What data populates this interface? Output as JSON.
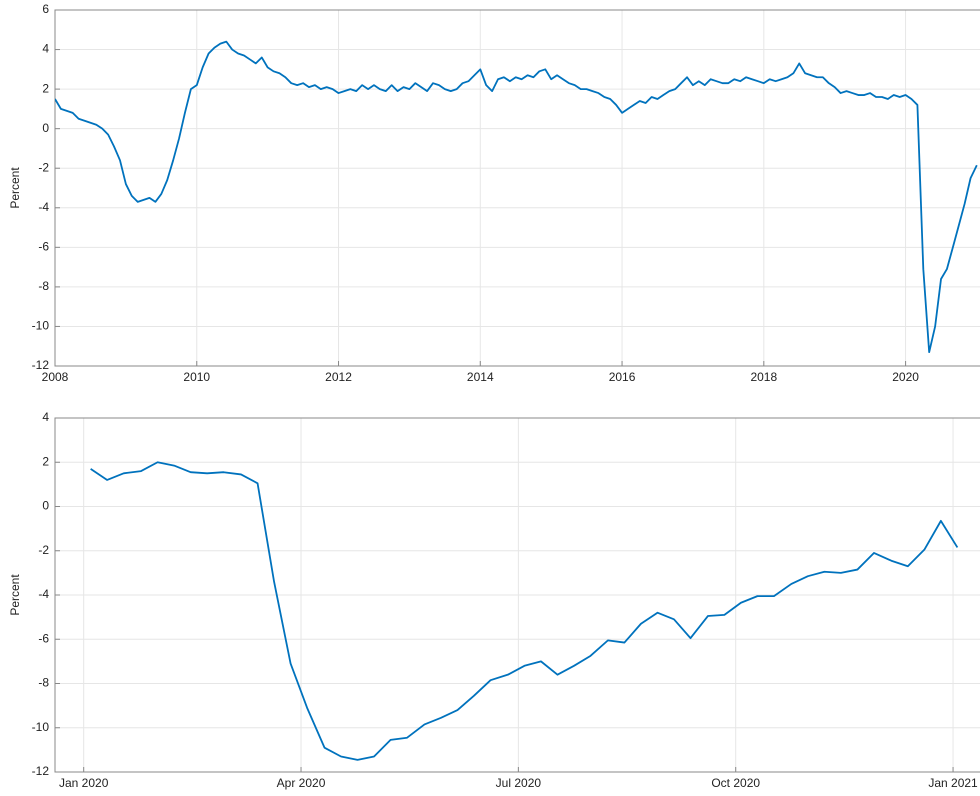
{
  "chart_data": [
    {
      "type": "line",
      "ylabel": "Percent",
      "color": "#0072bd",
      "grid": true,
      "xlim": [
        2008,
        2021.05
      ],
      "ylim": [
        -12,
        6
      ],
      "xticks": [
        2008,
        2010,
        2012,
        2014,
        2016,
        2018,
        2020
      ],
      "yticks": [
        -12,
        -10,
        -8,
        -6,
        -4,
        -2,
        0,
        2,
        4,
        6
      ],
      "x": [
        2008,
        2008.083,
        2008.167,
        2008.25,
        2008.333,
        2008.417,
        2008.5,
        2008.583,
        2008.667,
        2008.75,
        2008.833,
        2008.917,
        2009,
        2009.083,
        2009.167,
        2009.25,
        2009.333,
        2009.417,
        2009.5,
        2009.583,
        2009.667,
        2009.75,
        2009.833,
        2009.917,
        2010,
        2010.083,
        2010.167,
        2010.25,
        2010.333,
        2010.417,
        2010.5,
        2010.583,
        2010.667,
        2010.75,
        2010.833,
        2010.917,
        2011,
        2011.083,
        2011.167,
        2011.25,
        2011.333,
        2011.417,
        2011.5,
        2011.583,
        2011.667,
        2011.75,
        2011.833,
        2011.917,
        2012,
        2012.083,
        2012.167,
        2012.25,
        2012.333,
        2012.417,
        2012.5,
        2012.583,
        2012.667,
        2012.75,
        2012.833,
        2012.917,
        2013,
        2013.083,
        2013.167,
        2013.25,
        2013.333,
        2013.417,
        2013.5,
        2013.583,
        2013.667,
        2013.75,
        2013.833,
        2013.917,
        2014,
        2014.083,
        2014.167,
        2014.25,
        2014.333,
        2014.417,
        2014.5,
        2014.583,
        2014.667,
        2014.75,
        2014.833,
        2014.917,
        2015,
        2015.083,
        2015.167,
        2015.25,
        2015.333,
        2015.417,
        2015.5,
        2015.583,
        2015.667,
        2015.75,
        2015.833,
        2015.917,
        2016,
        2016.083,
        2016.167,
        2016.25,
        2016.333,
        2016.417,
        2016.5,
        2016.583,
        2016.667,
        2016.75,
        2016.833,
        2016.917,
        2017,
        2017.083,
        2017.167,
        2017.25,
        2017.333,
        2017.417,
        2017.5,
        2017.583,
        2017.667,
        2017.75,
        2017.833,
        2017.917,
        2018,
        2018.083,
        2018.167,
        2018.25,
        2018.333,
        2018.417,
        2018.5,
        2018.583,
        2018.667,
        2018.75,
        2018.833,
        2018.917,
        2019,
        2019.083,
        2019.167,
        2019.25,
        2019.333,
        2019.417,
        2019.5,
        2019.583,
        2019.667,
        2019.75,
        2019.833,
        2019.917,
        2020,
        2020.083,
        2020.167,
        2020.25,
        2020.333,
        2020.417,
        2020.5,
        2020.583,
        2020.667,
        2020.75,
        2020.833,
        2020.917,
        2021.005
      ],
      "values": [
        1.5,
        1.0,
        0.9,
        0.8,
        0.5,
        0.4,
        0.3,
        0.2,
        0.0,
        -0.3,
        -0.9,
        -1.6,
        -2.8,
        -3.4,
        -3.7,
        -3.6,
        -3.5,
        -3.7,
        -3.3,
        -2.6,
        -1.6,
        -0.5,
        0.8,
        2.0,
        2.2,
        3.1,
        3.8,
        4.1,
        4.3,
        4.4,
        4.0,
        3.8,
        3.7,
        3.5,
        3.3,
        3.6,
        3.1,
        2.9,
        2.8,
        2.6,
        2.3,
        2.2,
        2.3,
        2.1,
        2.2,
        2.0,
        2.1,
        2.0,
        1.8,
        1.9,
        2.0,
        1.9,
        2.2,
        2.0,
        2.2,
        2.0,
        1.9,
        2.2,
        1.9,
        2.1,
        2.0,
        2.3,
        2.1,
        1.9,
        2.3,
        2.2,
        2.0,
        1.9,
        2.0,
        2.3,
        2.4,
        2.7,
        3.0,
        2.2,
        1.9,
        2.5,
        2.6,
        2.4,
        2.6,
        2.5,
        2.7,
        2.6,
        2.9,
        3.0,
        2.5,
        2.7,
        2.5,
        2.3,
        2.2,
        2.0,
        2.0,
        1.9,
        1.8,
        1.6,
        1.5,
        1.2,
        0.8,
        1.0,
        1.2,
        1.4,
        1.3,
        1.6,
        1.5,
        1.7,
        1.9,
        2.0,
        2.3,
        2.6,
        2.2,
        2.4,
        2.2,
        2.5,
        2.4,
        2.3,
        2.3,
        2.5,
        2.4,
        2.6,
        2.5,
        2.4,
        2.3,
        2.5,
        2.4,
        2.5,
        2.6,
        2.8,
        3.3,
        2.8,
        2.7,
        2.6,
        2.6,
        2.3,
        2.1,
        1.8,
        1.9,
        1.8,
        1.7,
        1.7,
        1.8,
        1.6,
        1.6,
        1.5,
        1.7,
        1.6,
        1.7,
        1.5,
        1.2,
        -7.1,
        -11.3,
        -10.0,
        -7.6,
        -7.1,
        -6.0,
        -4.9,
        -3.8,
        -2.5,
        -1.85
      ]
    },
    {
      "type": "line",
      "ylabel": "Percent",
      "color": "#0072bd",
      "grid": true,
      "xlim": [
        2019.967,
        2021.031
      ],
      "ylim": [
        -12,
        4
      ],
      "xticks": [
        {
          "value": 2020,
          "label": "Jan 2020"
        },
        {
          "value": 2020.25,
          "label": "Apr 2020"
        },
        {
          "value": 2020.5,
          "label": "Jul 2020"
        },
        {
          "value": 2020.75,
          "label": "Oct 2020"
        },
        {
          "value": 2021,
          "label": "Jan 2021"
        }
      ],
      "yticks": [
        -12,
        -10,
        -8,
        -6,
        -4,
        -2,
        0,
        2,
        4
      ],
      "x": [
        2020.008,
        2020.027,
        2020.046,
        2020.066,
        2020.085,
        2020.104,
        2020.123,
        2020.142,
        2020.161,
        2020.181,
        2020.2,
        2020.219,
        2020.238,
        2020.257,
        2020.277,
        2020.296,
        2020.315,
        2020.334,
        2020.353,
        2020.372,
        2020.392,
        2020.411,
        2020.43,
        2020.449,
        2020.468,
        2020.488,
        2020.507,
        2020.526,
        2020.545,
        2020.564,
        2020.583,
        2020.603,
        2020.622,
        2020.641,
        2020.66,
        2020.679,
        2020.698,
        2020.718,
        2020.737,
        2020.756,
        2020.775,
        2020.794,
        2020.814,
        2020.833,
        2020.852,
        2020.871,
        2020.89,
        2020.909,
        2020.929,
        2020.948,
        2020.967,
        2020.986,
        2021.005
      ],
      "values": [
        1.7,
        1.2,
        1.5,
        1.6,
        2.0,
        1.85,
        1.55,
        1.5,
        1.55,
        1.45,
        1.05,
        -3.4,
        -7.1,
        -9.1,
        -10.9,
        -11.3,
        -11.45,
        -11.3,
        -10.55,
        -10.45,
        -9.85,
        -9.55,
        -9.2,
        -8.55,
        -7.85,
        -7.6,
        -7.2,
        -7.0,
        -7.6,
        -7.2,
        -6.75,
        -6.05,
        -6.15,
        -5.3,
        -4.8,
        -5.1,
        -5.95,
        -4.95,
        -4.9,
        -4.35,
        -4.05,
        -4.05,
        -3.5,
        -3.15,
        -2.95,
        -3.0,
        -2.85,
        -2.1,
        -2.45,
        -2.7,
        -1.95,
        -0.65,
        -1.85
      ]
    }
  ]
}
